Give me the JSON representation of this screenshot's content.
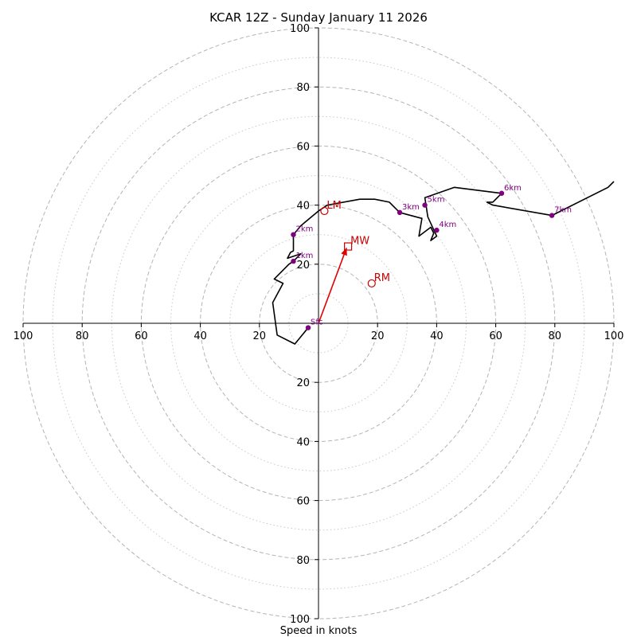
{
  "chart_data": {
    "type": "hodograph",
    "title": "KCAR 12Z - Sunday January 11 2026",
    "xlabel": "Speed in knots",
    "ylabel": "",
    "xlim": [
      -100,
      100
    ],
    "ylim": [
      -100,
      100
    ],
    "ring_values": [
      20,
      40,
      60,
      80,
      100
    ],
    "minor_ring_values": [
      10,
      30,
      50,
      70,
      90
    ],
    "x_tick_labels": [
      {
        "value": -100,
        "label": "100"
      },
      {
        "value": -80,
        "label": "80"
      },
      {
        "value": -60,
        "label": "60"
      },
      {
        "value": -40,
        "label": "40"
      },
      {
        "value": -20,
        "label": "20"
      },
      {
        "value": 20,
        "label": "20"
      },
      {
        "value": 40,
        "label": "40"
      },
      {
        "value": 60,
        "label": "60"
      },
      {
        "value": 80,
        "label": "80"
      },
      {
        "value": 100,
        "label": "100"
      }
    ],
    "y_tick_labels": [
      {
        "value": 100,
        "label": "100"
      },
      {
        "value": 80,
        "label": "80"
      },
      {
        "value": 60,
        "label": "60"
      },
      {
        "value": 40,
        "label": "40"
      },
      {
        "value": 20,
        "label": "20"
      },
      {
        "value": -20,
        "label": "20"
      },
      {
        "value": -40,
        "label": "40"
      },
      {
        "value": -60,
        "label": "60"
      },
      {
        "value": -80,
        "label": "80"
      },
      {
        "value": -100,
        "label": "100"
      }
    ],
    "grid": true,
    "trace": {
      "color": "#000000",
      "points": [
        [
          -3.5,
          -1.5
        ],
        [
          -8,
          -7
        ],
        [
          -14,
          -4
        ],
        [
          -15.5,
          7
        ],
        [
          -12,
          13.5
        ],
        [
          -15,
          15
        ],
        [
          -10,
          20
        ],
        [
          -8.5,
          21
        ],
        [
          -6,
          23.5
        ],
        [
          -10.5,
          22
        ],
        [
          -9.5,
          24
        ],
        [
          -8.5,
          24.5
        ],
        [
          -8.5,
          30
        ],
        [
          -6,
          33
        ],
        [
          0,
          38
        ],
        [
          3,
          40
        ],
        [
          14,
          42
        ],
        [
          19,
          42
        ],
        [
          24,
          41
        ],
        [
          27.5,
          37.5
        ],
        [
          35,
          35.5
        ],
        [
          34,
          29.5
        ],
        [
          38,
          32.5
        ],
        [
          39,
          30.5
        ],
        [
          38,
          28
        ],
        [
          40,
          29.5
        ],
        [
          37,
          36
        ],
        [
          36,
          42.5
        ],
        [
          46,
          46
        ],
        [
          58,
          44.5
        ],
        [
          62,
          44
        ],
        [
          59,
          41
        ],
        [
          57,
          41
        ],
        [
          59,
          40
        ],
        [
          79,
          36.5
        ],
        [
          98,
          46
        ],
        [
          100,
          48
        ]
      ]
    },
    "height_markers": {
      "color": "#800080",
      "points": [
        {
          "label": "Sfc",
          "x": -3.5,
          "y": -1.5
        },
        {
          "label": "1km",
          "x": -8.5,
          "y": 21
        },
        {
          "label": "2km",
          "x": -8.5,
          "y": 30
        },
        {
          "label": "3km",
          "x": 27.5,
          "y": 37.5
        },
        {
          "label": "4km",
          "x": 40,
          "y": 31.5
        },
        {
          "label": "5km",
          "x": 36,
          "y": 40
        },
        {
          "label": "6km",
          "x": 62,
          "y": 44
        },
        {
          "label": "7km",
          "x": 79,
          "y": 36.5
        }
      ]
    },
    "storm_motion": {
      "color": "#cc0000",
      "right_mover": {
        "label": "RM",
        "x": 18,
        "y": 13.5
      },
      "left_mover": {
        "label": "LM",
        "x": 2,
        "y": 38
      },
      "mean_wind": {
        "label": "MW",
        "x": 10,
        "y": 26
      },
      "arrow": {
        "from": [
          0,
          0
        ],
        "to": [
          9.5,
          25.5
        ]
      }
    }
  }
}
